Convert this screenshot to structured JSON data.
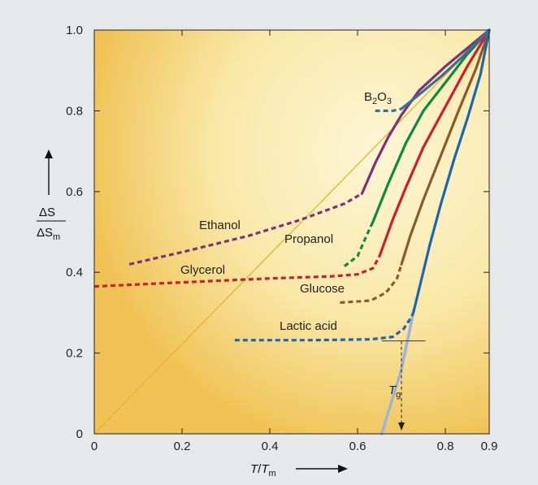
{
  "chart_data": {
    "type": "line",
    "xlabel": {
      "main": "T",
      "sep": "/",
      "base": "T",
      "sub": "m"
    },
    "ylabel": {
      "num": "ΔS",
      "den": "ΔS",
      "den_sub": "m"
    },
    "xlim": [
      0,
      0.9
    ],
    "ylim": [
      0,
      1.0
    ],
    "x_ticks": [
      "0",
      "0.2",
      "0.4",
      "0.6",
      "0.8",
      "0.9"
    ],
    "x_tick_values": [
      0,
      0.2,
      0.4,
      0.6,
      0.8,
      0.9
    ],
    "y_ticks": [
      "0",
      "0.2",
      "0.4",
      "0.6",
      "0.8",
      "1.0"
    ],
    "y_tick_values": [
      0,
      0.2,
      0.4,
      0.6,
      0.8,
      1.0
    ],
    "grid": false,
    "series": [
      {
        "name": "Ethanol",
        "color": "#7b3278",
        "dashed": [
          [
            0.08,
            0.42
          ],
          [
            0.2,
            0.45
          ],
          [
            0.35,
            0.49
          ],
          [
            0.47,
            0.53
          ],
          [
            0.57,
            0.57
          ],
          [
            0.61,
            0.595
          ]
        ],
        "solid": [
          [
            0.61,
            0.595
          ],
          [
            0.64,
            0.67
          ],
          [
            0.67,
            0.735
          ],
          [
            0.7,
            0.79
          ],
          [
            0.74,
            0.85
          ],
          [
            0.8,
            0.91
          ],
          [
            0.85,
            0.955
          ],
          [
            0.9,
            1.0
          ]
        ]
      },
      {
        "name": "Propanol",
        "color": "#0e8a3c",
        "dashed": [
          [
            0.57,
            0.415
          ],
          [
            0.6,
            0.44
          ],
          [
            0.62,
            0.49
          ],
          [
            0.635,
            0.525
          ]
        ],
        "solid": [
          [
            0.635,
            0.525
          ],
          [
            0.67,
            0.62
          ],
          [
            0.71,
            0.72
          ],
          [
            0.75,
            0.8
          ],
          [
            0.8,
            0.87
          ],
          [
            0.85,
            0.94
          ],
          [
            0.9,
            1.0
          ]
        ]
      },
      {
        "name": "Glycerol",
        "color": "#cc1f2b",
        "dashed": [
          [
            0.0,
            0.365
          ],
          [
            0.2,
            0.375
          ],
          [
            0.4,
            0.385
          ],
          [
            0.54,
            0.39
          ],
          [
            0.6,
            0.395
          ],
          [
            0.635,
            0.41
          ],
          [
            0.65,
            0.44
          ]
        ],
        "solid": [
          [
            0.65,
            0.44
          ],
          [
            0.68,
            0.53
          ],
          [
            0.71,
            0.61
          ],
          [
            0.75,
            0.71
          ],
          [
            0.8,
            0.81
          ],
          [
            0.85,
            0.91
          ],
          [
            0.9,
            1.0
          ]
        ]
      },
      {
        "name": "Glucose",
        "color": "#8a5a2b",
        "dashed": [
          [
            0.56,
            0.325
          ],
          [
            0.63,
            0.33
          ],
          [
            0.665,
            0.35
          ],
          [
            0.69,
            0.385
          ],
          [
            0.7,
            0.42
          ]
        ],
        "solid": [
          [
            0.7,
            0.42
          ],
          [
            0.72,
            0.49
          ],
          [
            0.75,
            0.58
          ],
          [
            0.79,
            0.69
          ],
          [
            0.83,
            0.8
          ],
          [
            0.87,
            0.905
          ],
          [
            0.9,
            1.0
          ]
        ]
      },
      {
        "name": "Lactic acid",
        "color": "#1b66b0",
        "dashed": [
          [
            0.32,
            0.232
          ],
          [
            0.5,
            0.232
          ],
          [
            0.63,
            0.234
          ],
          [
            0.68,
            0.24
          ],
          [
            0.705,
            0.26
          ],
          [
            0.72,
            0.285
          ],
          [
            0.727,
            0.3
          ]
        ],
        "solid": [
          [
            0.727,
            0.3
          ],
          [
            0.745,
            0.38
          ],
          [
            0.765,
            0.47
          ],
          [
            0.79,
            0.57
          ],
          [
            0.82,
            0.68
          ],
          [
            0.85,
            0.78
          ],
          [
            0.88,
            0.89
          ],
          [
            0.9,
            1.0
          ]
        ]
      },
      {
        "name": "B2O3",
        "color": "#3c6e99",
        "dashed": [
          [
            0.64,
            0.8
          ],
          [
            0.68,
            0.8
          ],
          [
            0.7,
            0.805
          ]
        ],
        "solid": [
          [
            0.7,
            0.805
          ],
          [
            0.74,
            0.84
          ],
          [
            0.79,
            0.885
          ],
          [
            0.84,
            0.935
          ],
          [
            0.9,
            1.0
          ]
        ]
      }
    ],
    "diagonal": [
      [
        0,
        0
      ],
      [
        0.9,
        1.0
      ]
    ],
    "extrapolation": [
      [
        0.655,
        0
      ],
      [
        0.7,
        0.16
      ],
      [
        0.727,
        0.3
      ]
    ],
    "tg_marker": {
      "x": 0.7,
      "y": 0.23
    },
    "annotations": {
      "ethanol": "Ethanol",
      "propanol": "Propanol",
      "glycerol": "Glycerol",
      "glucose": "Glucose",
      "lactic": "Lactic acid",
      "b2o3_main": "B",
      "b2o3_sub1": "2",
      "b2o3_mid": "O",
      "b2o3_sub2": "3",
      "tg_main": "T",
      "tg_sub": "g"
    },
    "colors": {
      "background_light": "#fdf6d6",
      "background_dark": "#f0c255",
      "diagonal": "#e8b22a",
      "extrapolation": "#9fb3d6",
      "frame": "#222222"
    }
  }
}
